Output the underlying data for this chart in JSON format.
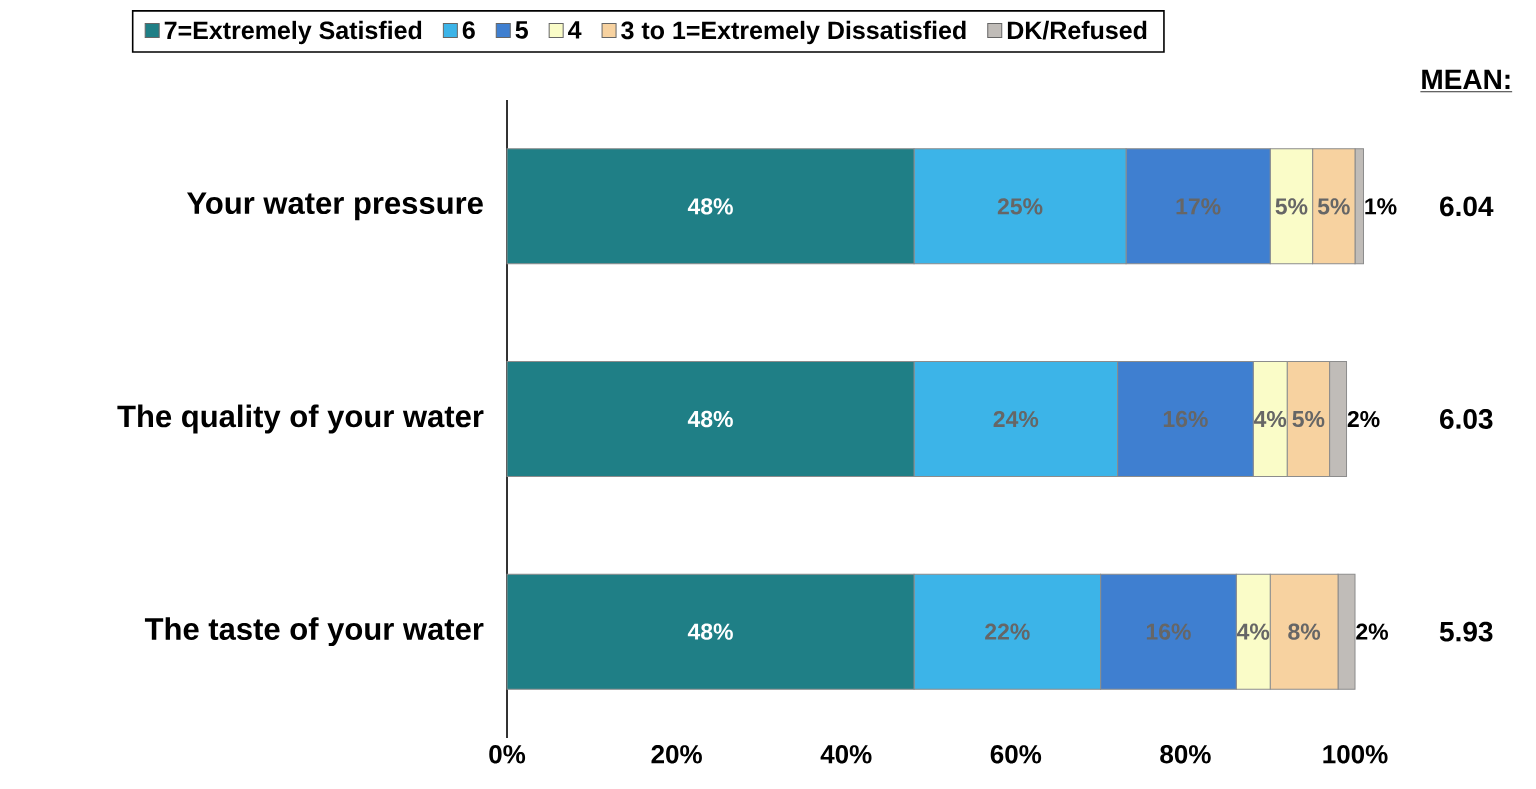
{
  "chart_data": {
    "type": "bar",
    "orientation": "horizontal",
    "stacked": true,
    "categories": [
      "Your water pressure",
      "The quality of your water",
      "The taste of your water"
    ],
    "series": [
      {
        "name": "7=Extremely Satisfied",
        "color": "#1f7f86",
        "values": [
          48,
          48,
          48
        ],
        "value_labels": [
          "48%",
          "48%",
          "48%"
        ]
      },
      {
        "name": "6",
        "color": "#3cb4e8",
        "values": [
          25,
          24,
          22
        ],
        "value_labels": [
          "25%",
          "24%",
          "22%"
        ]
      },
      {
        "name": "5",
        "color": "#3f7fd0",
        "values": [
          17,
          16,
          16
        ],
        "value_labels": [
          "17%",
          "16%",
          "16%"
        ]
      },
      {
        "name": "4",
        "color": "#fafcc8",
        "values": [
          5,
          4,
          4
        ],
        "value_labels": [
          "5%",
          "4%",
          "4%"
        ]
      },
      {
        "name": "3 to 1=Extremely Dissatisfied",
        "color": "#f7d2a0",
        "values": [
          5,
          5,
          8
        ],
        "value_labels": [
          "5%",
          "5%",
          "8%"
        ]
      },
      {
        "name": "DK/Refused",
        "color": "#c0bcb8",
        "values": [
          1,
          2,
          2
        ],
        "value_labels": [
          "1%",
          "2%",
          "2%"
        ]
      }
    ],
    "xlim": [
      0,
      101
    ],
    "xticks": [
      {
        "value": 0,
        "label": "0%"
      },
      {
        "value": 20,
        "label": "20%"
      },
      {
        "value": 40,
        "label": "40%"
      },
      {
        "value": 60,
        "label": "60%"
      },
      {
        "value": 80,
        "label": "80%"
      },
      {
        "value": 100,
        "label": "100%"
      }
    ],
    "legend": "top",
    "annotations": [
      "MEAN:",
      "6.04",
      "6.03",
      "5.93"
    ]
  }
}
